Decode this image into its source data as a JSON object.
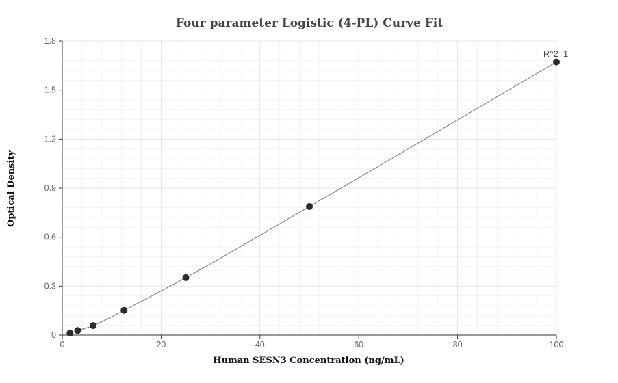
{
  "chart_data": {
    "type": "scatter",
    "title": "Four parameter Logistic (4-PL) Curve Fit",
    "xlabel": "Human SESN3 Concentration (ng/mL)",
    "ylabel": "Optical Density",
    "xlim": [
      0,
      100
    ],
    "ylim": [
      0,
      1.8
    ],
    "x_ticks": [
      0,
      20,
      40,
      60,
      80,
      100
    ],
    "y_ticks": [
      0,
      0.3,
      0.6,
      0.9,
      1.2,
      1.5,
      1.8
    ],
    "y_tick_labels": [
      "0",
      "0.3",
      "0.6",
      "0.9",
      "1.2",
      "1.5",
      "1.8"
    ],
    "grid": true,
    "annotation": "R^2=1",
    "series": [
      {
        "x": [
          1.5625,
          3.125,
          6.25,
          12.5,
          25,
          50,
          100
        ],
        "y": [
          0.012,
          0.028,
          0.058,
          0.152,
          0.352,
          0.787,
          1.672
        ]
      }
    ],
    "colors": {
      "points": "#2b2b2b",
      "fit_line": "#808080",
      "grid": "#e6e6e6"
    }
  }
}
